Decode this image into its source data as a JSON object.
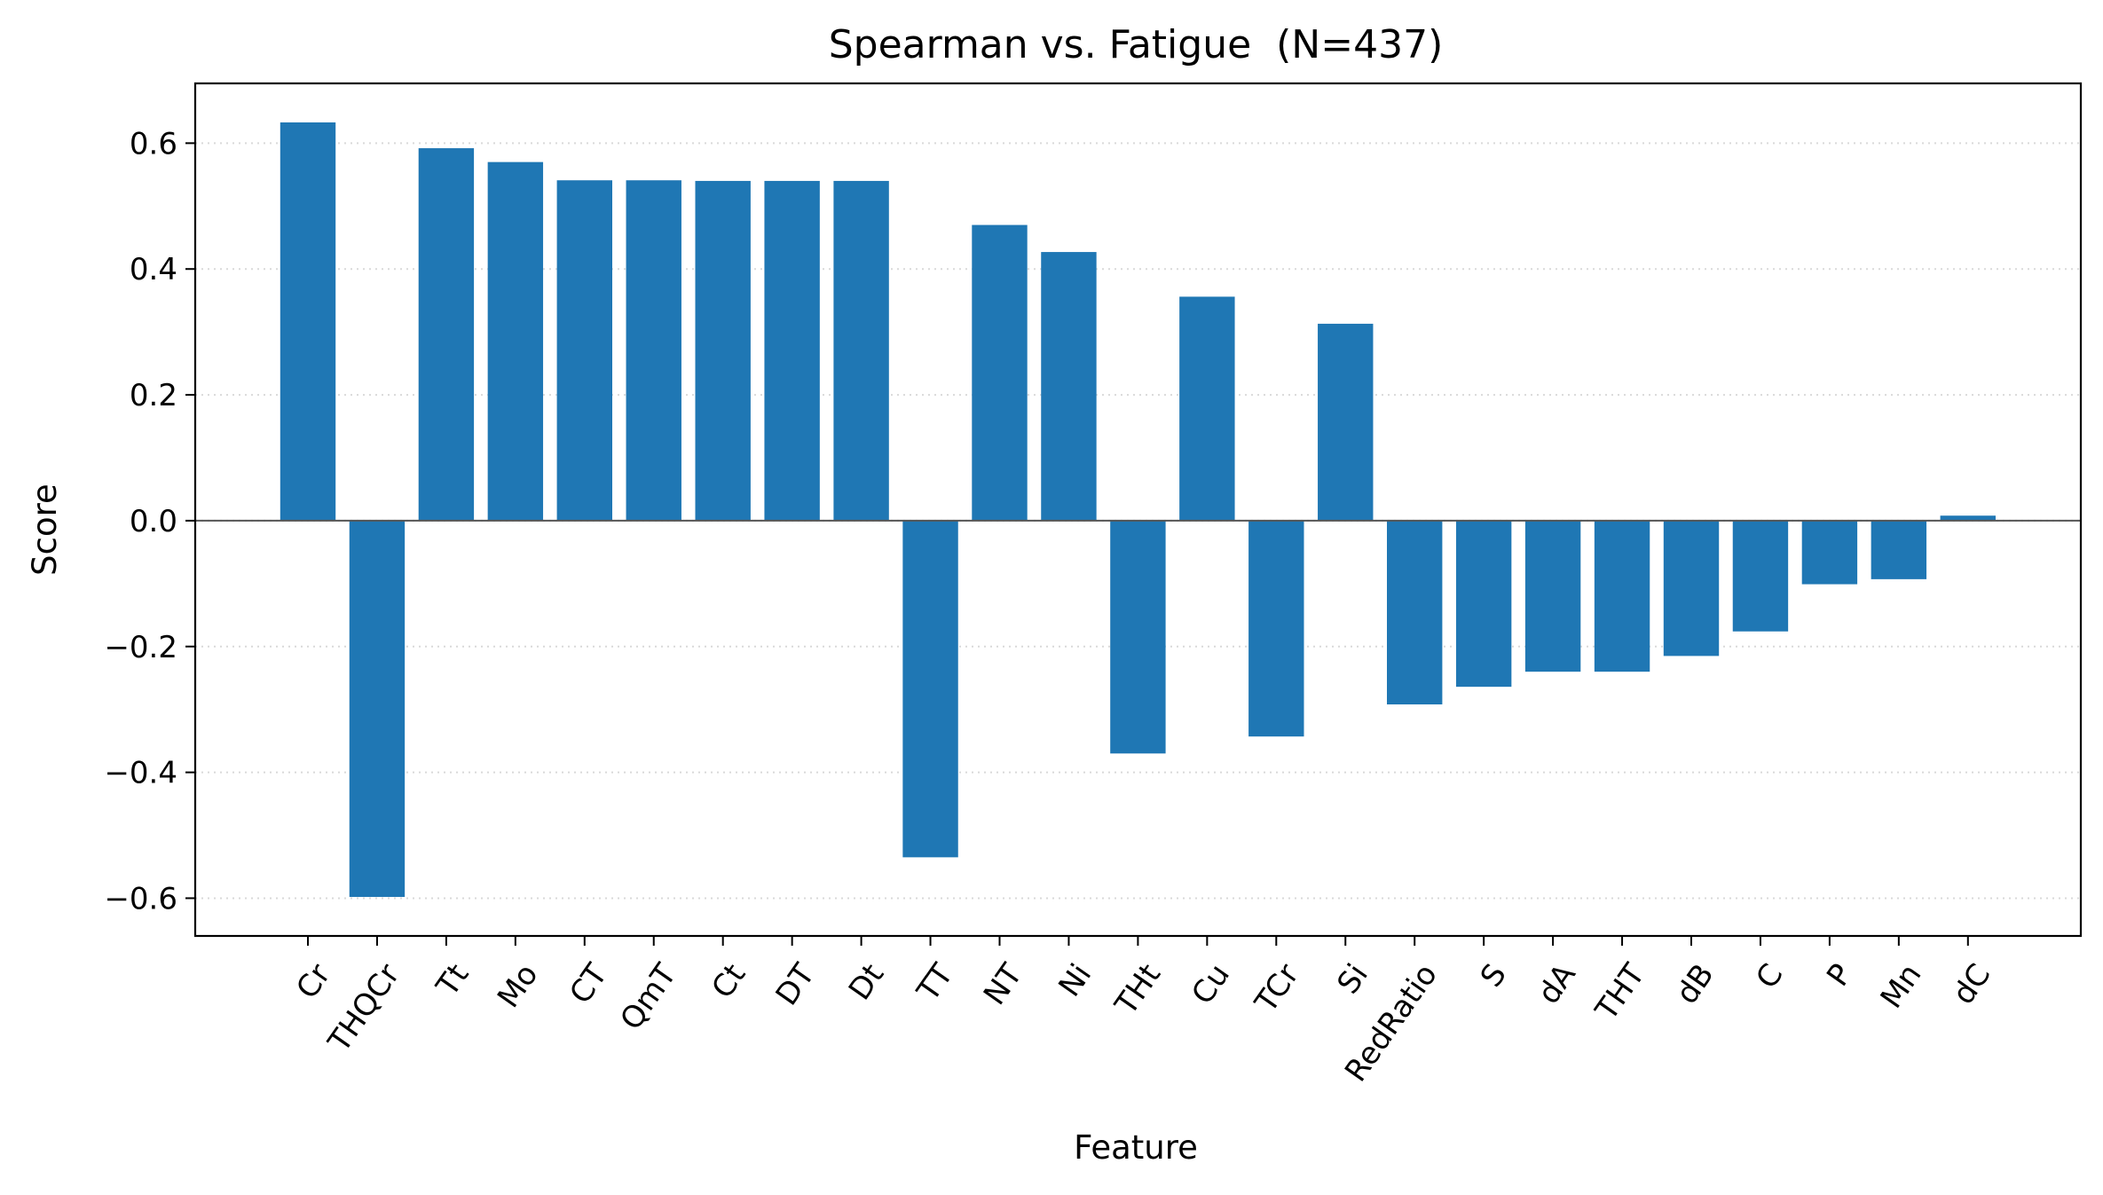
{
  "chart_data": {
    "type": "bar",
    "title": "Spearman vs. Fatigue  (N=437)",
    "xlabel": "Feature",
    "ylabel": "Score",
    "ylim": [
      -0.66,
      0.695
    ],
    "yticks": [
      -0.6,
      -0.4,
      -0.2,
      0.0,
      0.2,
      0.4,
      0.6
    ],
    "ytick_labels": [
      "−0.6",
      "−0.4",
      "−0.2",
      "0.0",
      "0.2",
      "0.4",
      "0.6"
    ],
    "grid": "y-dotted",
    "bar_color": "#1f77b4",
    "categories": [
      "Cr",
      "THQCr",
      "Tt",
      "Mo",
      "CT",
      "QmT",
      "Ct",
      "DT",
      "Dt",
      "TT",
      "NT",
      "Ni",
      "THt",
      "Cu",
      "TCr",
      "Si",
      "RedRatio",
      "S",
      "dA",
      "THT",
      "dB",
      "C",
      "P",
      "Mn",
      "dC"
    ],
    "values": [
      0.633,
      -0.598,
      0.592,
      0.57,
      0.541,
      0.541,
      0.54,
      0.54,
      0.54,
      -0.535,
      0.47,
      0.427,
      -0.37,
      0.356,
      -0.343,
      0.313,
      -0.292,
      -0.264,
      -0.24,
      -0.24,
      -0.215,
      -0.176,
      -0.101,
      -0.093,
      0.008
    ]
  }
}
